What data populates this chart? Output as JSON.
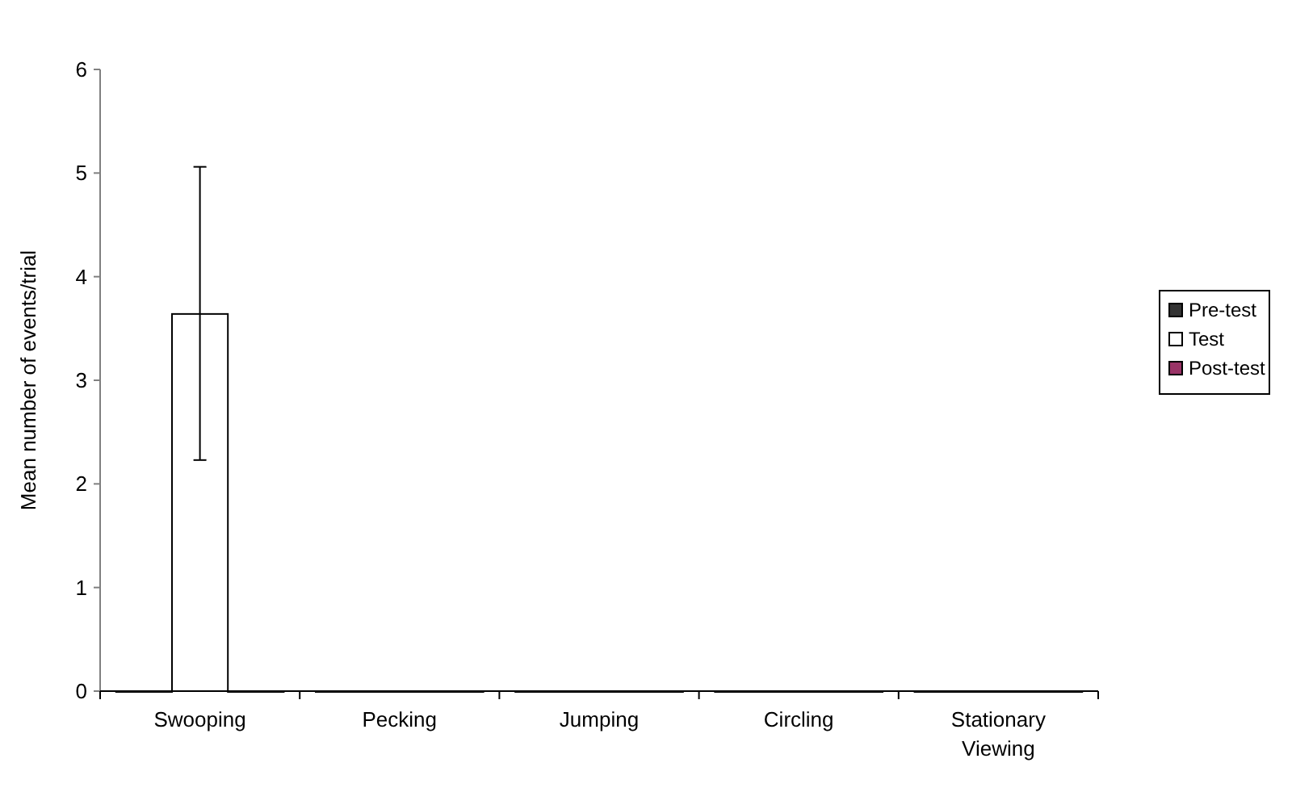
{
  "chart_data": {
    "type": "bar",
    "ylabel": "Mean number of events/trial",
    "categories": [
      "Swooping",
      "Pecking",
      "Jumping",
      "Circling",
      "Stationary Viewing"
    ],
    "series": [
      {
        "name": "Pre-test",
        "color": "#333333",
        "values": [
          0,
          0,
          0,
          0,
          0
        ]
      },
      {
        "name": "Test",
        "color": "#ffffff",
        "values": [
          3.64,
          0,
          0,
          0,
          0
        ],
        "errors": [
          [
            2.23,
            5.06
          ],
          null,
          null,
          null,
          null
        ]
      },
      {
        "name": "Post-test",
        "color": "#993366",
        "values": [
          0,
          0,
          0,
          0,
          0
        ]
      }
    ],
    "ylim": [
      0,
      6
    ],
    "yticks": [
      0,
      1,
      2,
      3,
      4,
      5,
      6
    ],
    "grid": false,
    "legend": "right"
  }
}
